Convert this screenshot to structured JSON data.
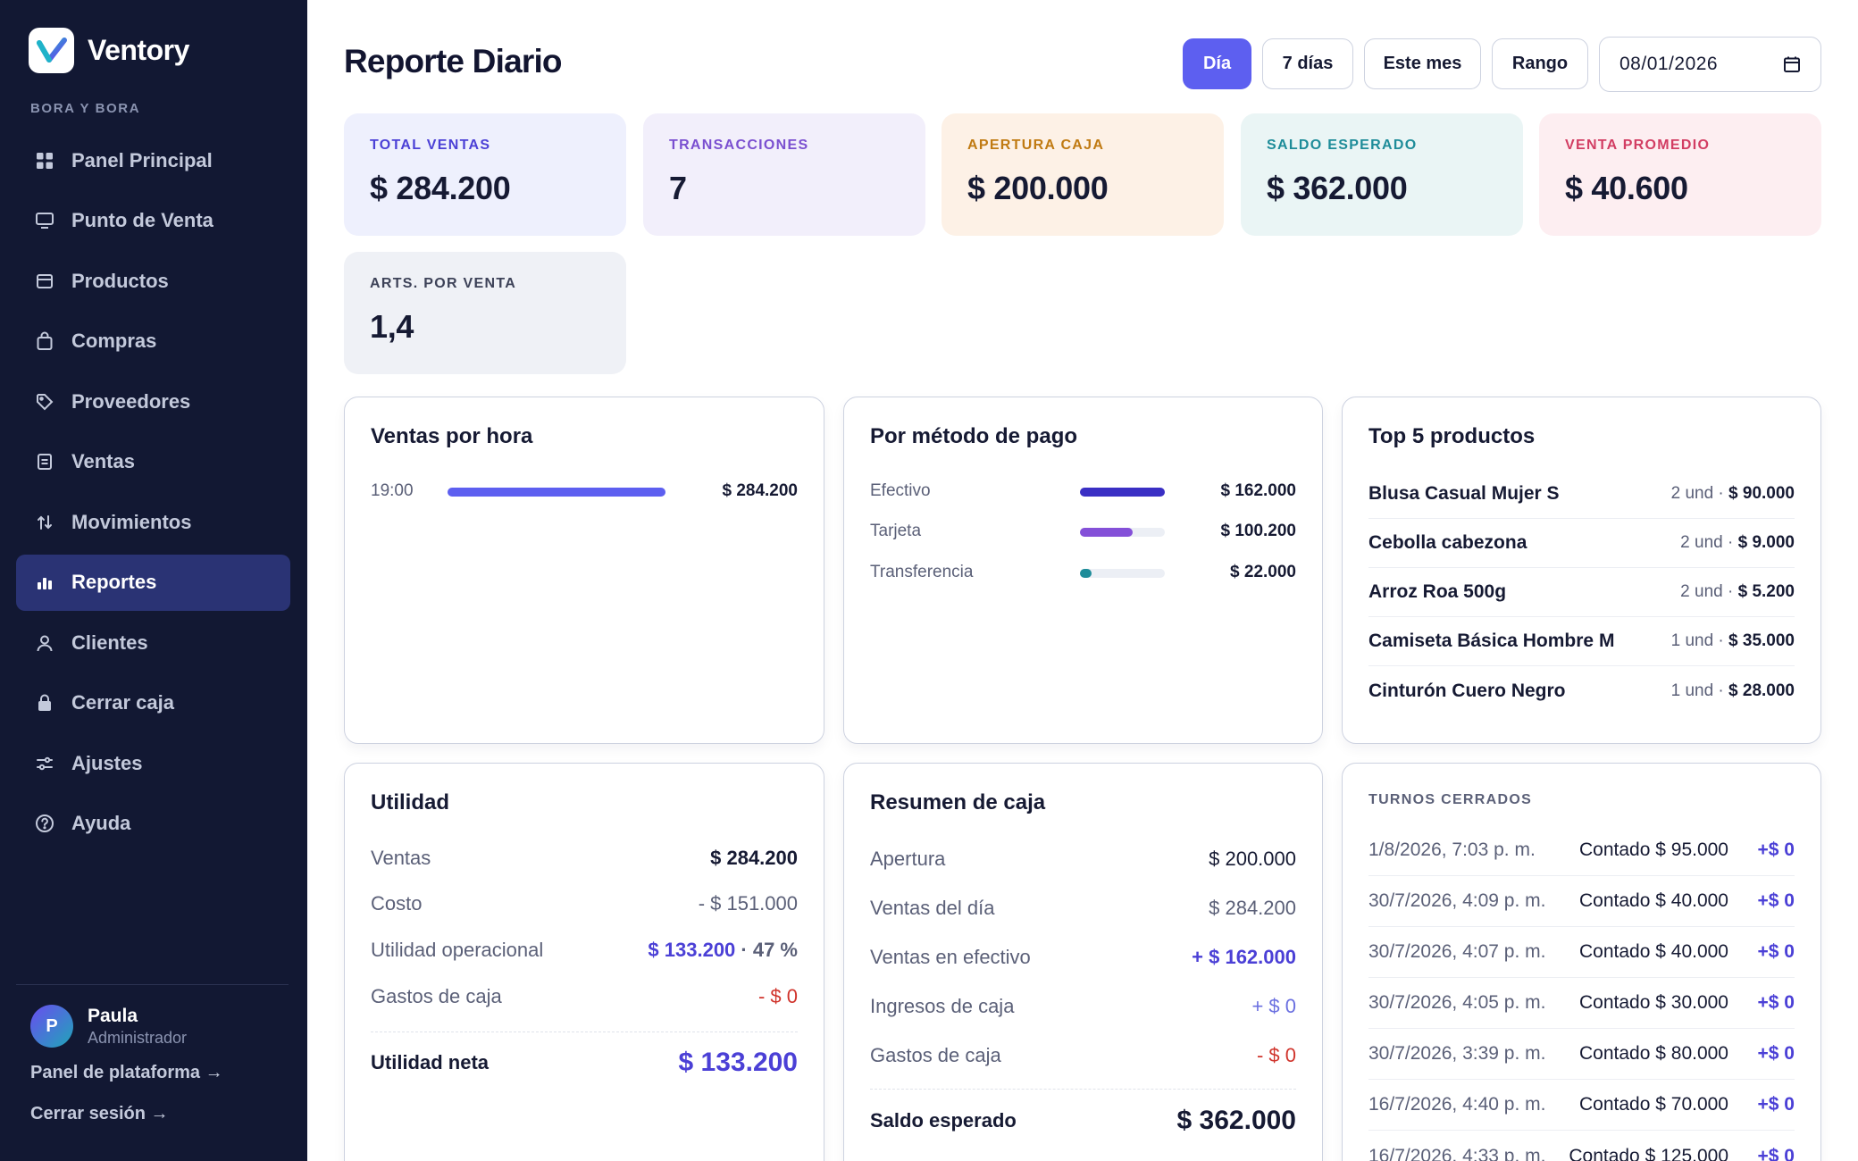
{
  "app": {
    "name": "Ventory",
    "org": "BORA Y BORA"
  },
  "nav": {
    "items": [
      {
        "label": "Panel Principal",
        "icon": "grid-icon"
      },
      {
        "label": "Punto de Venta",
        "icon": "monitor-icon"
      },
      {
        "label": "Productos",
        "icon": "box-icon"
      },
      {
        "label": "Compras",
        "icon": "bag-icon"
      },
      {
        "label": "Proveedores",
        "icon": "tag-icon"
      },
      {
        "label": "Ventas",
        "icon": "receipt-icon"
      },
      {
        "label": "Movimientos",
        "icon": "arrows-icon"
      },
      {
        "label": "Reportes",
        "icon": "bar-chart-icon",
        "active": true
      },
      {
        "label": "Clientes",
        "icon": "user-icon"
      },
      {
        "label": "Cerrar caja",
        "icon": "lock-icon"
      },
      {
        "label": "Ajustes",
        "icon": "sliders-icon"
      },
      {
        "label": "Ayuda",
        "icon": "help-icon"
      }
    ]
  },
  "user": {
    "initial": "P",
    "name": "Paula",
    "role": "Administrador"
  },
  "footer_links": {
    "platform": "Panel de plataforma →",
    "logout": "Cerrar sesión →"
  },
  "header": {
    "title": "Reporte Diario",
    "filters": {
      "day": "Día",
      "week": "7 días",
      "month": "Este mes",
      "range": "Rango"
    },
    "active_filter": "day",
    "date_value": "08/01/2026"
  },
  "kpis": [
    {
      "label": "TOTAL VENTAS",
      "value": "$ 284.200",
      "bg": "#eef0fd",
      "color": "#4b40d6"
    },
    {
      "label": "TRANSACCIONES",
      "value": "7",
      "bg": "#f2effb",
      "color": "#7a4fd0"
    },
    {
      "label": "APERTURA CAJA",
      "value": "$ 200.000",
      "bg": "#fdf1e6",
      "color": "#c07a12"
    },
    {
      "label": "SALDO ESPERADO",
      "value": "$ 362.000",
      "bg": "#eaf5f5",
      "color": "#1e8c99"
    },
    {
      "label": "VENTA PROMEDIO",
      "value": "$ 40.600",
      "bg": "#fdeef1",
      "color": "#d23d63"
    },
    {
      "label": "ARTS. POR VENTA",
      "value": "1,4",
      "bg": "#eff1f6",
      "color": "#3d4258"
    }
  ],
  "sales_by_hour": {
    "title": "Ventas por hora",
    "rows": [
      {
        "hour": "19:00",
        "amount": "$ 284.200",
        "fraction": 1.0
      }
    ]
  },
  "payment_methods": {
    "title": "Por método de pago",
    "rows": [
      {
        "label": "Efectivo",
        "amount": "$ 162.000",
        "fraction": 1.0,
        "color": "#3a2fc4"
      },
      {
        "label": "Tarjeta",
        "amount": "$ 100.200",
        "fraction": 0.62,
        "color": "#8450d8"
      },
      {
        "label": "Transferencia",
        "amount": "$ 22.000",
        "fraction": 0.14,
        "color": "#1e8c99"
      }
    ]
  },
  "top_products": {
    "title": "Top 5 productos",
    "rows": [
      {
        "name": "Blusa Casual Mujer S",
        "qty": "2 und ·",
        "amount": "$ 90.000"
      },
      {
        "name": "Cebolla cabezona",
        "qty": "2 und ·",
        "amount": "$ 9.000"
      },
      {
        "name": "Arroz Roa 500g",
        "qty": "2 und ·",
        "amount": "$ 5.200"
      },
      {
        "name": "Camiseta Básica Hombre M",
        "qty": "1 und ·",
        "amount": "$ 35.000"
      },
      {
        "name": "Cinturón Cuero Negro",
        "qty": "1 und ·",
        "amount": "$ 28.000"
      }
    ]
  },
  "utilidad": {
    "title": "Utilidad",
    "ventas_label": "Ventas",
    "ventas_value": "$ 284.200",
    "costo_label": "Costo",
    "costo_value": "- $ 151.000",
    "op_label": "Utilidad operacional",
    "op_value": "$ 133.200",
    "op_pct": " · 47 %",
    "gastos_label": "Gastos de caja",
    "gastos_value": "- $ 0",
    "neta_label": "Utilidad neta",
    "neta_value": "$ 133.200"
  },
  "resumen_caja": {
    "title": "Resumen de caja",
    "apertura_label": "Apertura",
    "apertura_value": "$ 200.000",
    "ventas_label": "Ventas del día",
    "ventas_value": "$ 284.200",
    "efectivo_label": "Ventas en efectivo",
    "efectivo_value": "+ $ 162.000",
    "ingresos_label": "Ingresos de caja",
    "ingresos_value": "+ $ 0",
    "gastos_label": "Gastos de caja",
    "gastos_value": "- $ 0",
    "saldo_label": "Saldo esperado",
    "saldo_value": "$ 362.000"
  },
  "turnos": {
    "title": "TURNOS CERRADOS",
    "rows": [
      {
        "date": "1/8/2026, 7:03 p. m.",
        "count": "Contado $ 95.000",
        "diff": "+$ 0"
      },
      {
        "date": "30/7/2026, 4:09 p. m.",
        "count": "Contado $ 40.000",
        "diff": "+$ 0"
      },
      {
        "date": "30/7/2026, 4:07 p. m.",
        "count": "Contado $ 40.000",
        "diff": "+$ 0"
      },
      {
        "date": "30/7/2026, 4:05 p. m.",
        "count": "Contado $ 30.000",
        "diff": "+$ 0"
      },
      {
        "date": "30/7/2026, 3:39 p. m.",
        "count": "Contado $ 80.000",
        "diff": "+$ 0"
      },
      {
        "date": "16/7/2026, 4:40 p. m.",
        "count": "Contado $ 70.000",
        "diff": "+$ 0"
      },
      {
        "date": "16/7/2026, 4:33 p. m.",
        "count": "Contado $ 125.000",
        "diff": "+$ 0"
      }
    ]
  }
}
